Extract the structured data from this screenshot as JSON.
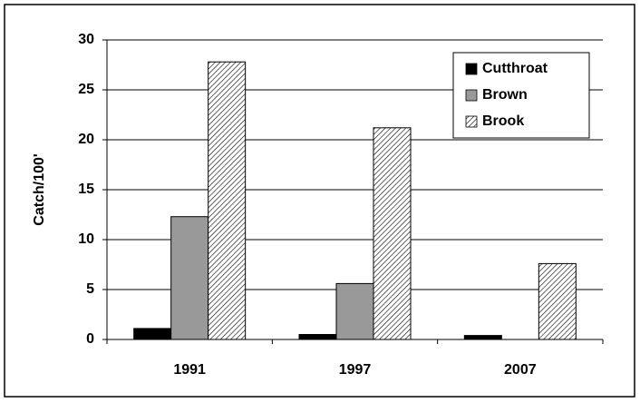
{
  "chart_data": {
    "type": "bar",
    "y_label": "Catch/100'",
    "categories": [
      "1991",
      "1997",
      "2007"
    ],
    "series": [
      {
        "name": "Cutthroat",
        "color": "#000000",
        "values": [
          1.1,
          0.5,
          0.4
        ]
      },
      {
        "name": "Brown",
        "color": "#999999",
        "values": [
          12.3,
          5.6,
          0
        ]
      },
      {
        "name": "Brook",
        "color": "#000000",
        "pattern": "hatch",
        "values": [
          27.8,
          21.2,
          7.6
        ]
      }
    ],
    "ylim": [
      0,
      30
    ],
    "yticks": [
      0,
      5,
      10,
      15,
      20,
      25,
      30
    ],
    "grid": true,
    "legend": "upper right"
  }
}
